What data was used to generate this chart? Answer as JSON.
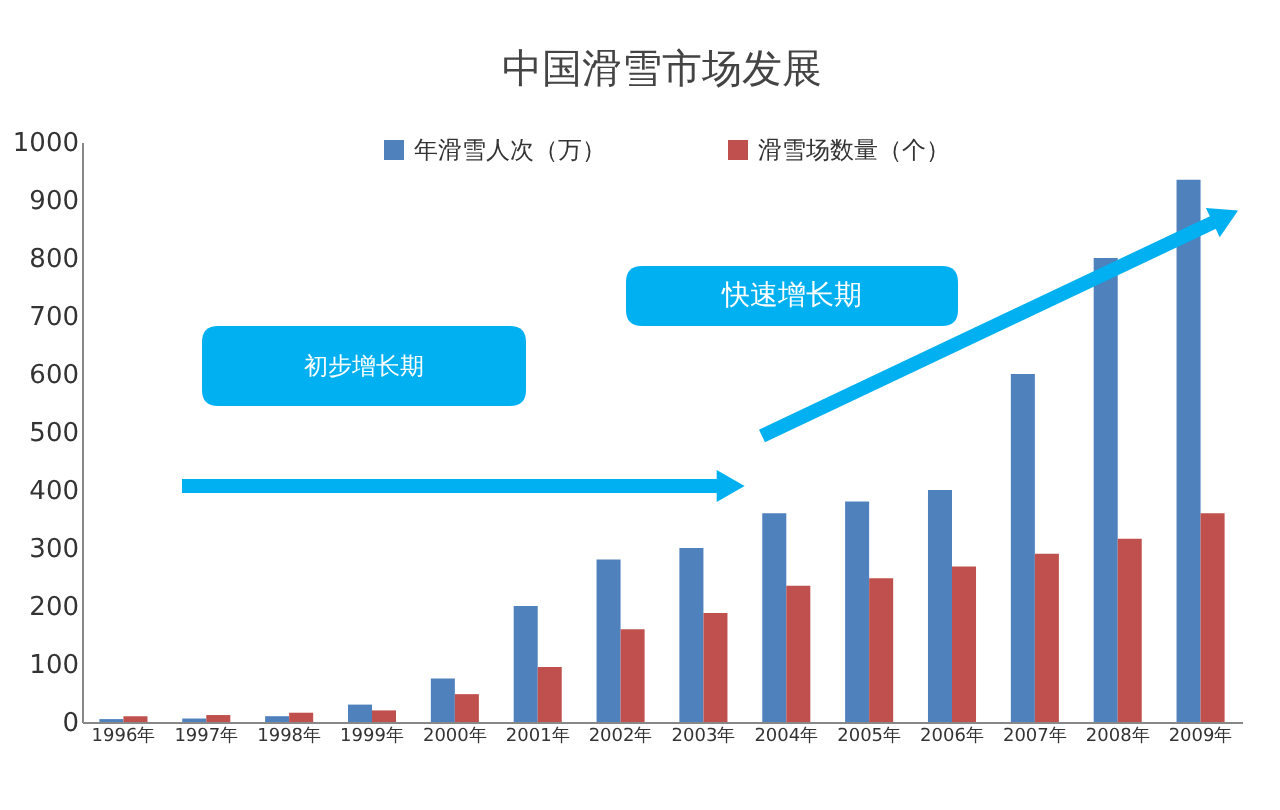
{
  "chart_data": {
    "type": "bar",
    "title": "中国滑雪市场发展",
    "categories": [
      "1996年",
      "1997年",
      "1998年",
      "1999年",
      "2000年",
      "2001年",
      "2002年",
      "2003年",
      "2004年",
      "2005年",
      "2006年",
      "2007年",
      "2008年",
      "2009年"
    ],
    "series": [
      {
        "name": "年滑雪人次（万）",
        "color": "#4f81bd",
        "values": [
          5,
          6,
          10,
          30,
          75,
          200,
          280,
          300,
          360,
          380,
          400,
          600,
          800,
          935
        ]
      },
      {
        "name": "滑雪场数量（个）",
        "color": "#c0504d",
        "values": [
          10,
          12,
          16,
          20,
          48,
          95,
          160,
          188,
          235,
          248,
          268,
          290,
          316,
          360
        ]
      }
    ],
    "ylim": [
      0,
      1000
    ],
    "yticks": [
      0,
      100,
      200,
      300,
      400,
      500,
      600,
      700,
      800,
      900,
      1000
    ],
    "grid": false,
    "legend": "top",
    "annotations": [
      "初步增长期",
      "快速增长期"
    ]
  }
}
